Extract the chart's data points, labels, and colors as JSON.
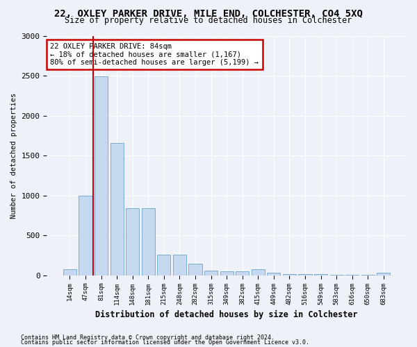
{
  "title": "22, OXLEY PARKER DRIVE, MILE END, COLCHESTER, CO4 5XQ",
  "subtitle": "Size of property relative to detached houses in Colchester",
  "xlabel": "Distribution of detached houses by size in Colchester",
  "ylabel": "Number of detached properties",
  "bar_color": "#c5d8f0",
  "bar_edge_color": "#7aadd4",
  "categories": [
    "14sqm",
    "47sqm",
    "81sqm",
    "114sqm",
    "148sqm",
    "181sqm",
    "215sqm",
    "248sqm",
    "282sqm",
    "315sqm",
    "349sqm",
    "382sqm",
    "415sqm",
    "449sqm",
    "482sqm",
    "516sqm",
    "549sqm",
    "583sqm",
    "616sqm",
    "650sqm",
    "683sqm"
  ],
  "values": [
    75,
    1000,
    2490,
    1660,
    840,
    840,
    260,
    260,
    140,
    60,
    50,
    50,
    75,
    30,
    10,
    10,
    10,
    5,
    5,
    5,
    30
  ],
  "vline_color": "#cc0000",
  "annotation_text": "22 OXLEY PARKER DRIVE: 84sqm\n← 18% of detached houses are smaller (1,167)\n80% of semi-detached houses are larger (5,199) →",
  "annotation_box_color": "#ffffff",
  "annotation_box_edge": "#cc0000",
  "ylim": [
    0,
    3000
  ],
  "yticks": [
    0,
    500,
    1000,
    1500,
    2000,
    2500,
    3000
  ],
  "footer1": "Contains HM Land Registry data © Crown copyright and database right 2024.",
  "footer2": "Contains public sector information licensed under the Open Government Licence v3.0.",
  "background_color": "#eef2f8",
  "grid_color": "#ffffff"
}
